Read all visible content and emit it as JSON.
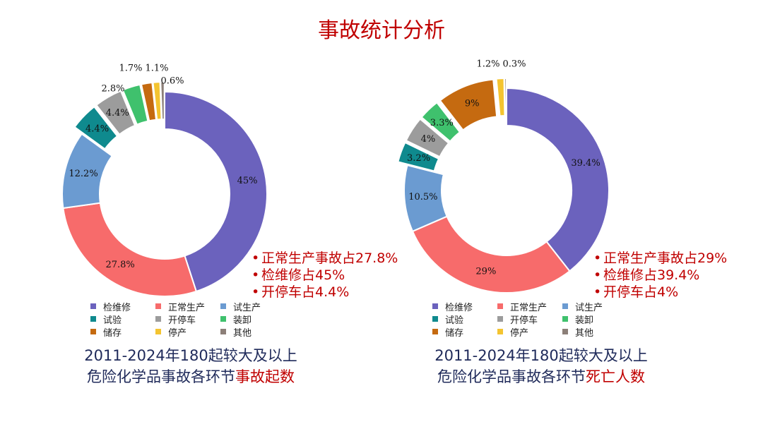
{
  "page_title": "事故统计分析",
  "colors": {
    "检维修": "#6b62bd",
    "正常生产": "#f76b6b",
    "试生产": "#6b9bd1",
    "试验": "#0f8a8e",
    "开停车": "#9c9c9c",
    "装卸": "#3fc16d",
    "储存": "#c56a10",
    "停产": "#f4c430",
    "其他": "#8c7f78"
  },
  "chart_data": [
    {
      "type": "pie",
      "subtype": "donut",
      "title": "2011-2024年180起较大及以上危险化学品事故各环节事故起数",
      "categories": [
        "检维修",
        "正常生产",
        "试生产",
        "试验",
        "开停车",
        "装卸",
        "储存",
        "停产",
        "其他"
      ],
      "values": [
        45,
        27.8,
        12.2,
        4.4,
        4.4,
        2.8,
        1.7,
        1.1,
        0.6
      ],
      "labels": [
        "45%",
        "27.8%",
        "12.2%",
        "4.4%",
        "4.4%",
        "2.8%",
        "1.7%",
        "1.1%",
        "0.6%"
      ],
      "exploded": [
        false,
        false,
        false,
        true,
        true,
        true,
        true,
        true,
        true
      ],
      "legend": "bottom"
    },
    {
      "type": "pie",
      "subtype": "donut",
      "title": "2011-2024年180起较大及以上危险化学品事故各环节死亡人数",
      "categories": [
        "检维修",
        "正常生产",
        "试生产",
        "试验",
        "开停车",
        "装卸",
        "储存",
        "停产",
        "其他"
      ],
      "values": [
        39.4,
        29,
        10.5,
        3.2,
        4,
        3.3,
        9,
        1.2,
        0.3
      ],
      "labels": [
        "39.4%",
        "29%",
        "10.5%",
        "3.2%",
        "4%",
        "3.3%",
        "9%",
        "1.2%",
        "0.3%"
      ],
      "exploded": [
        false,
        false,
        false,
        true,
        true,
        true,
        true,
        true,
        true
      ],
      "legend": "bottom"
    }
  ],
  "left": {
    "bullets": [
      "正常生产事故占27.8%",
      "检维修占45%",
      "开停车占4.4%"
    ],
    "caption_line1": "2011-2024年180起较大及以上",
    "caption_line2_prefix": "危险化学品事故各环节",
    "caption_line2_highlight": "事故起数"
  },
  "right": {
    "bullets": [
      "正常生产事故占29%",
      "检维修占39.4%",
      "开停车占4%"
    ],
    "caption_line1": "2011-2024年180起较大及以上",
    "caption_line2_prefix": "危险化学品事故各环节",
    "caption_line2_highlight": "死亡人数"
  },
  "legend_labels": [
    "检维修",
    "正常生产",
    "试生产",
    "试验",
    "开停车",
    "装卸",
    "储存",
    "停产",
    "其他"
  ]
}
